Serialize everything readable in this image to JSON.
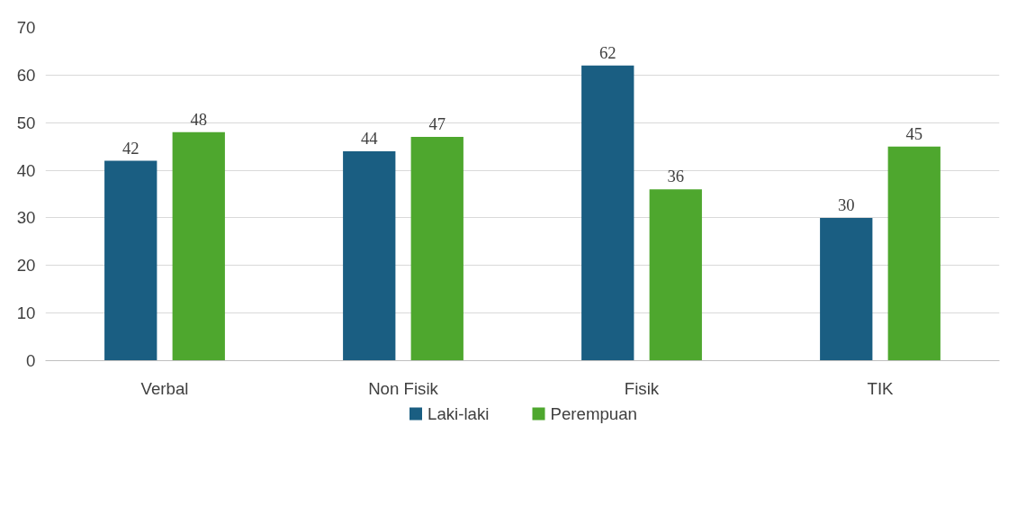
{
  "chart_data": {
    "type": "bar",
    "categories": [
      "Verbal",
      "Non Fisik",
      "Fisik",
      "TIK"
    ],
    "series": [
      {
        "name": "Laki-laki",
        "color": "#1a5e82",
        "values": [
          42,
          44,
          62,
          30
        ]
      },
      {
        "name": "Perempuan",
        "color": "#4ea72e",
        "values": [
          48,
          47,
          36,
          45
        ]
      }
    ],
    "ylim": [
      0,
      70
    ],
    "yticks": [
      0,
      10,
      20,
      30,
      40,
      50,
      60,
      70
    ],
    "grid": "y",
    "legend": "bottom",
    "data_labels": true
  }
}
